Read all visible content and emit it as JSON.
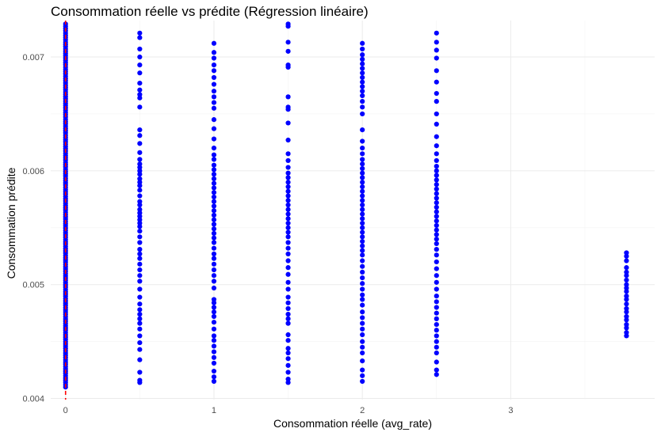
{
  "chart_data": {
    "type": "scatter",
    "title": "Consommation réelle vs prédite (Régression linéaire)",
    "xlabel": "Consommation réelle (avg_rate)",
    "ylabel": "Consommation prédite",
    "xlim": [
      -0.1,
      3.97
    ],
    "ylim": [
      0.00399,
      0.00732
    ],
    "x_ticks": [
      0,
      1,
      2,
      3
    ],
    "y_ticks": [
      0.004,
      0.005,
      0.006,
      0.007
    ],
    "x_tick_labels": [
      "0",
      "1",
      "2",
      "3"
    ],
    "y_tick_labels": [
      "0.004",
      "0.005",
      "0.006",
      "0.007"
    ],
    "grid": true,
    "legend": "none",
    "point_color": "#0000ff",
    "reference_line": {
      "type": "vertical",
      "x": 0,
      "color": "#ff0000",
      "style": "dashed"
    },
    "series": [
      {
        "values": [
          {
            "x": 0,
            "y_range": [
              0.0041,
              0.00729
            ],
            "dense": true
          },
          {
            "x": 0.5,
            "y": [
              0.00721,
              0.00717,
              0.00707,
              0.007,
              0.00693,
              0.00686,
              0.00677,
              0.00671,
              0.00667,
              0.00664,
              0.00656,
              0.00636,
              0.00631,
              0.00624,
              0.00616,
              0.0061,
              0.00606,
              0.00603,
              0.006,
              0.00597,
              0.00593,
              0.0059,
              0.00587,
              0.00583,
              0.00578,
              0.00573,
              0.0057,
              0.00566,
              0.00563,
              0.0056,
              0.00557,
              0.00554,
              0.00551,
              0.00547,
              0.00542,
              0.00537,
              0.00531,
              0.00527,
              0.00523,
              0.00518,
              0.00513,
              0.00508,
              0.00503,
              0.00496,
              0.00489,
              0.00483,
              0.00478,
              0.00474,
              0.0047,
              0.00466,
              0.00461,
              0.00455,
              0.00449,
              0.00443,
              0.00434,
              0.00423,
              0.00416,
              0.00414
            ]
          },
          {
            "x": 1,
            "y": [
              0.00712,
              0.00704,
              0.00699,
              0.00693,
              0.00688,
              0.00682,
              0.00676,
              0.0067,
              0.00665,
              0.0066,
              0.00655,
              0.00645,
              0.00637,
              0.00628,
              0.0062,
              0.00614,
              0.0061,
              0.00605,
              0.00601,
              0.00597,
              0.00593,
              0.00589,
              0.00585,
              0.00581,
              0.00577,
              0.00573,
              0.00569,
              0.00565,
              0.00561,
              0.00557,
              0.00553,
              0.00549,
              0.00545,
              0.00541,
              0.00537,
              0.00532,
              0.00527,
              0.00523,
              0.00518,
              0.00513,
              0.00508,
              0.00503,
              0.00497,
              0.00487,
              0.00484,
              0.0048,
              0.00476,
              0.00472,
              0.00467,
              0.00461,
              0.00455,
              0.00451,
              0.00446,
              0.00441,
              0.00436,
              0.00431,
              0.00424,
              0.00419,
              0.00415
            ]
          },
          {
            "x": 1.5,
            "y": [
              0.00729,
              0.00727,
              0.00713,
              0.00705,
              0.00693,
              0.00691,
              0.00665,
              0.00656,
              0.00654,
              0.00642,
              0.00627,
              0.00615,
              0.00609,
              0.00603,
              0.00598,
              0.00594,
              0.0059,
              0.00586,
              0.00582,
              0.00578,
              0.00574,
              0.0057,
              0.00566,
              0.00562,
              0.00558,
              0.00554,
              0.0055,
              0.00546,
              0.00542,
              0.00537,
              0.00532,
              0.00527,
              0.00521,
              0.00515,
              0.00509,
              0.00502,
              0.00496,
              0.00489,
              0.00484,
              0.00479,
              0.00474,
              0.0047,
              0.00466,
              0.00456,
              0.00451,
              0.00444,
              0.0044,
              0.00435,
              0.00429,
              0.00423,
              0.00417,
              0.00414
            ]
          },
          {
            "x": 2,
            "y": [
              0.00712,
              0.00707,
              0.00702,
              0.00698,
              0.00694,
              0.0069,
              0.00686,
              0.00682,
              0.00678,
              0.00674,
              0.0067,
              0.00666,
              0.00661,
              0.00656,
              0.0065,
              0.00636,
              0.00626,
              0.0062,
              0.00615,
              0.0061,
              0.00606,
              0.00602,
              0.00598,
              0.00594,
              0.0059,
              0.00586,
              0.00582,
              0.00578,
              0.00574,
              0.0057,
              0.00566,
              0.00562,
              0.00558,
              0.00554,
              0.0055,
              0.00546,
              0.00542,
              0.00538,
              0.00534,
              0.0053,
              0.00526,
              0.00521,
              0.00516,
              0.00511,
              0.00506,
              0.00501,
              0.00496,
              0.00491,
              0.00487,
              0.00482,
              0.00476,
              0.00471,
              0.00466,
              0.00461,
              0.00456,
              0.0045,
              0.00445,
              0.0044,
              0.00433,
              0.00425,
              0.0042,
              0.00415
            ]
          },
          {
            "x": 2.5,
            "y": [
              0.00721,
              0.00713,
              0.00706,
              0.00699,
              0.00688,
              0.00678,
              0.00668,
              0.00661,
              0.0065,
              0.00641,
              0.0063,
              0.00622,
              0.00615,
              0.00609,
              0.00604,
              0.006,
              0.00596,
              0.00592,
              0.00588,
              0.00584,
              0.0058,
              0.00576,
              0.00572,
              0.00568,
              0.00564,
              0.0056,
              0.00556,
              0.00552,
              0.00548,
              0.00544,
              0.0054,
              0.00536,
              0.00531,
              0.00526,
              0.0052,
              0.00514,
              0.00508,
              0.00502,
              0.00496,
              0.0049,
              0.00485,
              0.0048,
              0.00475,
              0.0047,
              0.00465,
              0.0046,
              0.00455,
              0.0045,
              0.00445,
              0.0044,
              0.00432,
              0.00425,
              0.00421
            ]
          },
          {
            "x": 3.78,
            "y": [
              0.00528,
              0.00525,
              0.00521,
              0.00515,
              0.00511,
              0.00508,
              0.00504,
              0.005,
              0.00497,
              0.00494,
              0.0049,
              0.00487,
              0.00483,
              0.00479,
              0.00476,
              0.00472,
              0.00469,
              0.00465,
              0.00462,
              0.00458,
              0.00455
            ]
          }
        ]
      }
    ]
  }
}
